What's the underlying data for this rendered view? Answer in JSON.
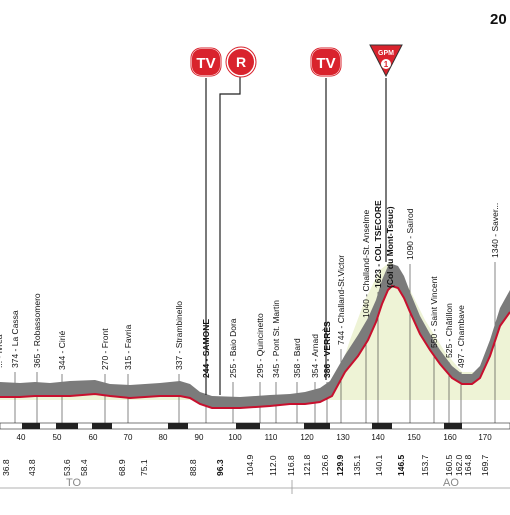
{
  "header": {
    "partial_title": "20"
  },
  "markers": {
    "tv_label": "TV",
    "r_label": "R",
    "gpm_label": "GPM",
    "gpm_category": "1"
  },
  "profile": {
    "main_line_color": "#c8102e",
    "fill_color": "#7a7a7a",
    "hills_fill_color": "#e8efc8"
  },
  "places": [
    {
      "label": "... - Ivrea"
    },
    {
      "label": "374 - La Cassa"
    },
    {
      "label": "365 - Robassomero"
    },
    {
      "label": "344 - Cirié"
    },
    {
      "label": "270 - Front"
    },
    {
      "label": "315 - Favria"
    },
    {
      "label": "337 - Strambinello"
    },
    {
      "label": "244 - SAMONE",
      "bold": true
    },
    {
      "label": "255 - Baio Dora"
    },
    {
      "label": "295 - Quincinetto"
    },
    {
      "label": "345 - Pont St. Martin"
    },
    {
      "label": "358 - Bard"
    },
    {
      "label": "354 - Arnad"
    },
    {
      "label": "386 - VERRÈS",
      "bold": true
    },
    {
      "label": "744 - Challand-St.Victor"
    },
    {
      "label": "1040 - Challand-St. Anselme"
    },
    {
      "label": "1623 - COL TSECORE",
      "bold": true
    },
    {
      "label": "(Col du Mont-Tseuc)",
      "bold": true
    },
    {
      "label": "1090 - Saïrod"
    },
    {
      "label": "550 - Saint Vincent"
    },
    {
      "label": "525 - Châtillon"
    },
    {
      "label": "497 - Chambave"
    },
    {
      "label": "1340 - Saver..."
    }
  ],
  "km_ticks": [
    "40",
    "50",
    "60",
    "70",
    "80",
    "90",
    "100",
    "110",
    "120",
    "130",
    "140",
    "150",
    "160",
    "170"
  ],
  "km_values": [
    {
      "label": "36.8"
    },
    {
      "label": "43.8"
    },
    {
      "label": "53.6"
    },
    {
      "label": "58.4"
    },
    {
      "label": "68.9"
    },
    {
      "label": "75.1"
    },
    {
      "label": "88.8"
    },
    {
      "label": "96.3",
      "bold": true
    },
    {
      "label": "104.9"
    },
    {
      "label": "112.0"
    },
    {
      "label": "116.8"
    },
    {
      "label": "121.8"
    },
    {
      "label": "126.6"
    },
    {
      "label": "129.9",
      "bold": true
    },
    {
      "label": "135.1"
    },
    {
      "label": "140.1"
    },
    {
      "label": "146.5",
      "bold": true
    },
    {
      "label": "153.7"
    },
    {
      "label": "160.5"
    },
    {
      "label": "162.0"
    },
    {
      "label": "164.8"
    },
    {
      "label": "169.7"
    }
  ],
  "regions": [
    {
      "label": "TO"
    },
    {
      "label": "AO"
    }
  ]
}
